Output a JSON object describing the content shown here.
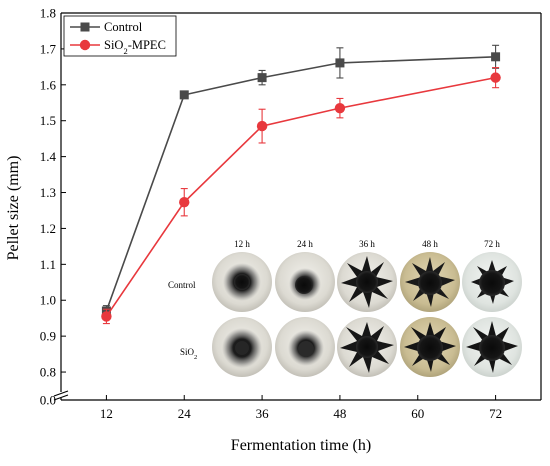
{
  "chart_data": {
    "type": "line",
    "xlabel": "Fermentation time (h)",
    "ylabel": "Pellet size (mm)",
    "x": [
      12,
      24,
      36,
      48,
      72
    ],
    "x_ticks": [
      12,
      24,
      36,
      48,
      60,
      72
    ],
    "xlim": [
      5,
      79
    ],
    "ylim": [
      0,
      1.8
    ],
    "y_axis_break": [
      0.05,
      0.75
    ],
    "y_ticks": [
      0.0,
      0.8,
      0.9,
      1.0,
      1.1,
      1.2,
      1.3,
      1.4,
      1.5,
      1.6,
      1.7,
      1.8
    ],
    "y_tick_labels": [
      "0.0",
      "0.8",
      "0.9",
      "1.0",
      "1.1",
      "1.2",
      "1.3",
      "1.4",
      "1.5",
      "1.6",
      "1.7",
      "1.8"
    ],
    "legend_position": "top-left",
    "grid": false,
    "series": [
      {
        "name": "Control",
        "name_main": "Control",
        "name_sub": "",
        "name_suffix": "",
        "color": "#4a4a4a",
        "marker": "square",
        "values": [
          0.97,
          1.572,
          1.62,
          1.661,
          1.678
        ],
        "errors": [
          0.015,
          0.008,
          0.02,
          0.042,
          0.032
        ]
      },
      {
        "name": "SiO2-MPEC",
        "name_main": "SiO",
        "name_sub": "2",
        "name_suffix": "-MPEC",
        "color": "#e8383d",
        "marker": "circle",
        "values": [
          0.955,
          1.273,
          1.485,
          1.535,
          1.62
        ],
        "errors": [
          0.02,
          0.038,
          0.047,
          0.027,
          0.028
        ]
      }
    ],
    "inset": {
      "columns": [
        "12 h",
        "24 h",
        "36 h",
        "48 h",
        "72 h"
      ],
      "rows": [
        {
          "label_main": "Control",
          "label_sub": ""
        },
        {
          "label_main": "SiO",
          "label_sub": "2"
        }
      ]
    }
  }
}
